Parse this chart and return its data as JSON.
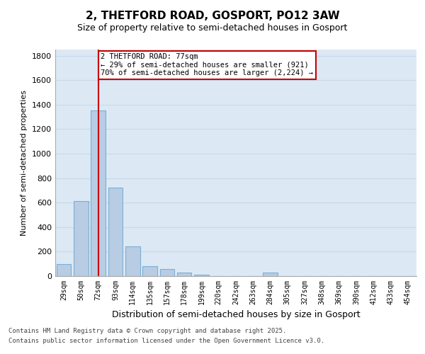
{
  "title_line1": "2, THETFORD ROAD, GOSPORT, PO12 3AW",
  "title_line2": "Size of property relative to semi-detached houses in Gosport",
  "xlabel": "Distribution of semi-detached houses by size in Gosport",
  "ylabel": "Number of semi-detached properties",
  "categories": [
    "29sqm",
    "50sqm",
    "72sqm",
    "93sqm",
    "114sqm",
    "135sqm",
    "157sqm",
    "178sqm",
    "199sqm",
    "220sqm",
    "242sqm",
    "263sqm",
    "284sqm",
    "305sqm",
    "327sqm",
    "348sqm",
    "369sqm",
    "390sqm",
    "412sqm",
    "433sqm",
    "454sqm"
  ],
  "values": [
    100,
    610,
    1350,
    720,
    240,
    80,
    55,
    30,
    10,
    0,
    0,
    0,
    30,
    0,
    0,
    0,
    0,
    0,
    0,
    0,
    0
  ],
  "bar_color": "#b8cce4",
  "bar_edge_color": "#7bafd4",
  "grid_color": "#c8d8e8",
  "bg_color": "#dce9f5",
  "property_bin_index": 2,
  "property_label": "2 THETFORD ROAD: 77sqm",
  "pct_smaller": 29,
  "pct_larger": 70,
  "n_smaller": 921,
  "n_larger": "2,224",
  "annotation_box_color": "#cc0000",
  "ylim": [
    0,
    1850
  ],
  "yticks": [
    0,
    200,
    400,
    600,
    800,
    1000,
    1200,
    1400,
    1600,
    1800
  ],
  "footer_line1": "Contains HM Land Registry data © Crown copyright and database right 2025.",
  "footer_line2": "Contains public sector information licensed under the Open Government Licence v3.0."
}
